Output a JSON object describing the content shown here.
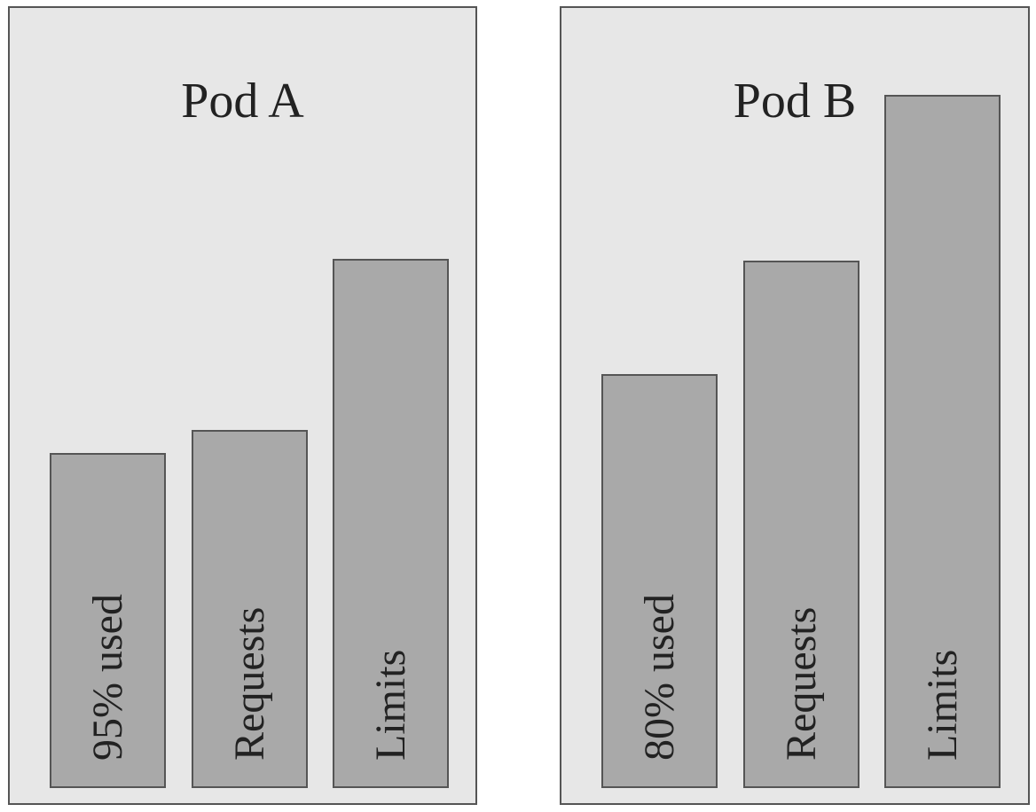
{
  "chart_data": [
    {
      "type": "bar",
      "title": "Pod A",
      "categories": [
        "95% used",
        "Requests",
        "Limits"
      ],
      "values": [
        376,
        402,
        595
      ],
      "color": "#a9a9a9"
    },
    {
      "type": "bar",
      "title": "Pod B",
      "categories": [
        "80% used",
        "Requests",
        "Limits"
      ],
      "values": [
        465,
        593,
        780
      ],
      "color": "#a9a9a9"
    }
  ]
}
